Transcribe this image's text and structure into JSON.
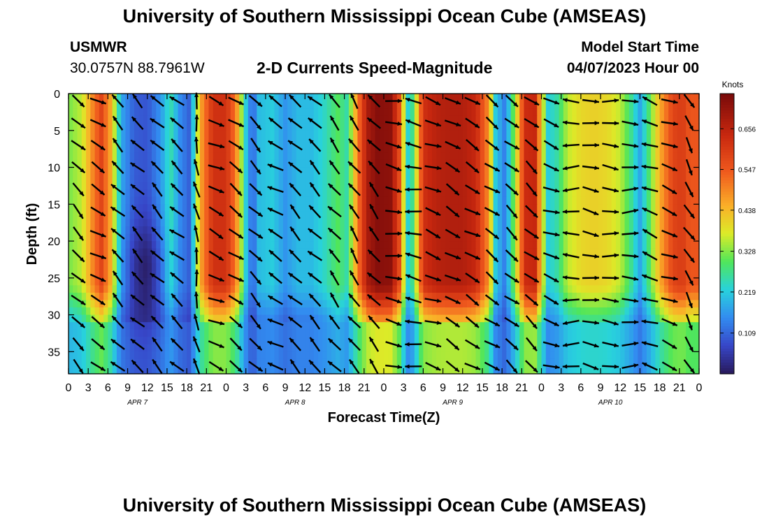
{
  "header": {
    "title": "University of Southern Mississippi Ocean Cube (AMSEAS)",
    "station": "USMWR",
    "coordinates": "30.0757N  88.7961W",
    "product": "2-D Currents Speed-Magnitude",
    "start_label": "Model Start Time",
    "start_value": "04/07/2023 Hour 00"
  },
  "footer": {
    "title": "University of Southern Mississippi Ocean Cube (AMSEAS)"
  },
  "colors": {
    "arrow": "#000000",
    "frame": "#000000",
    "land_green": "#1e9c3a"
  },
  "chart_data": {
    "type": "heatmap",
    "title": "2-D Currents Speed-Magnitude",
    "xlabel": "Forecast Time(Z)",
    "ylabel": "Depth (ft)",
    "xlim": [
      0,
      96
    ],
    "ylim": [
      38,
      0
    ],
    "x_ticks": [
      0,
      3,
      6,
      9,
      12,
      15,
      18,
      21,
      24,
      27,
      30,
      33,
      36,
      39,
      42,
      45,
      48,
      51,
      54,
      57,
      60,
      63,
      66,
      69,
      72,
      75,
      78,
      81,
      84,
      87,
      90,
      93,
      96
    ],
    "x_tick_labels": [
      "0",
      "3",
      "6",
      "9",
      "12",
      "15",
      "18",
      "21",
      "0",
      "3",
      "6",
      "9",
      "12",
      "15",
      "18",
      "21",
      "0",
      "3",
      "6",
      "9",
      "12",
      "15",
      "18",
      "21",
      "0",
      "3",
      "6",
      "9",
      "12",
      "15",
      "18",
      "21",
      "0"
    ],
    "day_labels": [
      {
        "hour": 10.5,
        "text": "APR 7"
      },
      {
        "hour": 34.5,
        "text": "APR 8"
      },
      {
        "hour": 58.5,
        "text": "APR 9"
      },
      {
        "hour": 82.5,
        "text": "APR 10"
      }
    ],
    "y_ticks": [
      0,
      5,
      10,
      15,
      20,
      25,
      30,
      35
    ],
    "y_tick_labels": [
      "0",
      "5",
      "10",
      "15",
      "20",
      "25",
      "30",
      "35"
    ],
    "colorbar": {
      "label": "Knots",
      "min": 0.0,
      "max": 0.75,
      "ticks": [
        0.109,
        0.219,
        0.328,
        0.438,
        0.547,
        0.656
      ],
      "tick_labels": [
        "0.109",
        "0.219",
        "0.328",
        "0.438",
        "0.547",
        "0.656"
      ]
    },
    "speed_time_profile_knots": [
      [
        0,
        0.32
      ],
      [
        2,
        0.36
      ],
      [
        3.5,
        0.48
      ],
      [
        5,
        0.58
      ],
      [
        6.5,
        0.45
      ],
      [
        8,
        0.18
      ],
      [
        10,
        0.1
      ],
      [
        12,
        0.09
      ],
      [
        14,
        0.16
      ],
      [
        15.5,
        0.26
      ],
      [
        17,
        0.15
      ],
      [
        18.5,
        0.1
      ],
      [
        20,
        0.45
      ],
      [
        22,
        0.62
      ],
      [
        24,
        0.62
      ],
      [
        25.5,
        0.5
      ],
      [
        27,
        0.22
      ],
      [
        28,
        0.1
      ],
      [
        29,
        0.2
      ],
      [
        31,
        0.22
      ],
      [
        33,
        0.16
      ],
      [
        35,
        0.2
      ],
      [
        37,
        0.2
      ],
      [
        39,
        0.24
      ],
      [
        41,
        0.3
      ],
      [
        42.5,
        0.25
      ],
      [
        44,
        0.5
      ],
      [
        45.5,
        0.68
      ],
      [
        47,
        0.73
      ],
      [
        49,
        0.72
      ],
      [
        50.5,
        0.55
      ],
      [
        51.5,
        0.22
      ],
      [
        52.5,
        0.28
      ],
      [
        54,
        0.62
      ],
      [
        56,
        0.66
      ],
      [
        58,
        0.67
      ],
      [
        60,
        0.67
      ],
      [
        62,
        0.64
      ],
      [
        64,
        0.48
      ],
      [
        65,
        0.22
      ],
      [
        66.5,
        0.13
      ],
      [
        68,
        0.35
      ],
      [
        69.5,
        0.63
      ],
      [
        71,
        0.64
      ],
      [
        72,
        0.42
      ],
      [
        73,
        0.22
      ],
      [
        74.5,
        0.26
      ],
      [
        76,
        0.36
      ],
      [
        78,
        0.4
      ],
      [
        80,
        0.41
      ],
      [
        82,
        0.4
      ],
      [
        84,
        0.36
      ],
      [
        85.5,
        0.28
      ],
      [
        87,
        0.18
      ],
      [
        88.5,
        0.3
      ],
      [
        90,
        0.45
      ],
      [
        92,
        0.58
      ],
      [
        93.5,
        0.6
      ],
      [
        94.5,
        0.55
      ],
      [
        96,
        0.55
      ]
    ],
    "surface_layer_boost_depth_ft": 30,
    "bottom_layer_depth_ft": 31,
    "arrows": {
      "hours": [
        1.5,
        4.5,
        7.5,
        10.5,
        13.5,
        16.5,
        19.5,
        22.5,
        25.5,
        28.5,
        31.5,
        34.5,
        37.5,
        40.5,
        43.5,
        46.5,
        49.5,
        52.5,
        55.5,
        58.5,
        61.5,
        64.5,
        67.5,
        70.5,
        73.5,
        76.5,
        79.5,
        82.5,
        85.5,
        88.5,
        91.5,
        94.5
      ],
      "depths_ft": [
        1,
        4,
        7,
        10,
        13,
        16,
        19,
        22,
        25,
        28,
        31,
        34,
        37
      ],
      "directions_deg_by_hour": [
        -45,
        -30,
        135,
        135,
        135,
        140,
        100,
        -25,
        -35,
        -45,
        150,
        135,
        135,
        130,
        125,
        130,
        -10,
        170,
        -20,
        -30,
        -30,
        -35,
        -40,
        -40,
        -20,
        180,
        -10,
        -5,
        0,
        160,
        -20,
        -60
      ]
    }
  }
}
